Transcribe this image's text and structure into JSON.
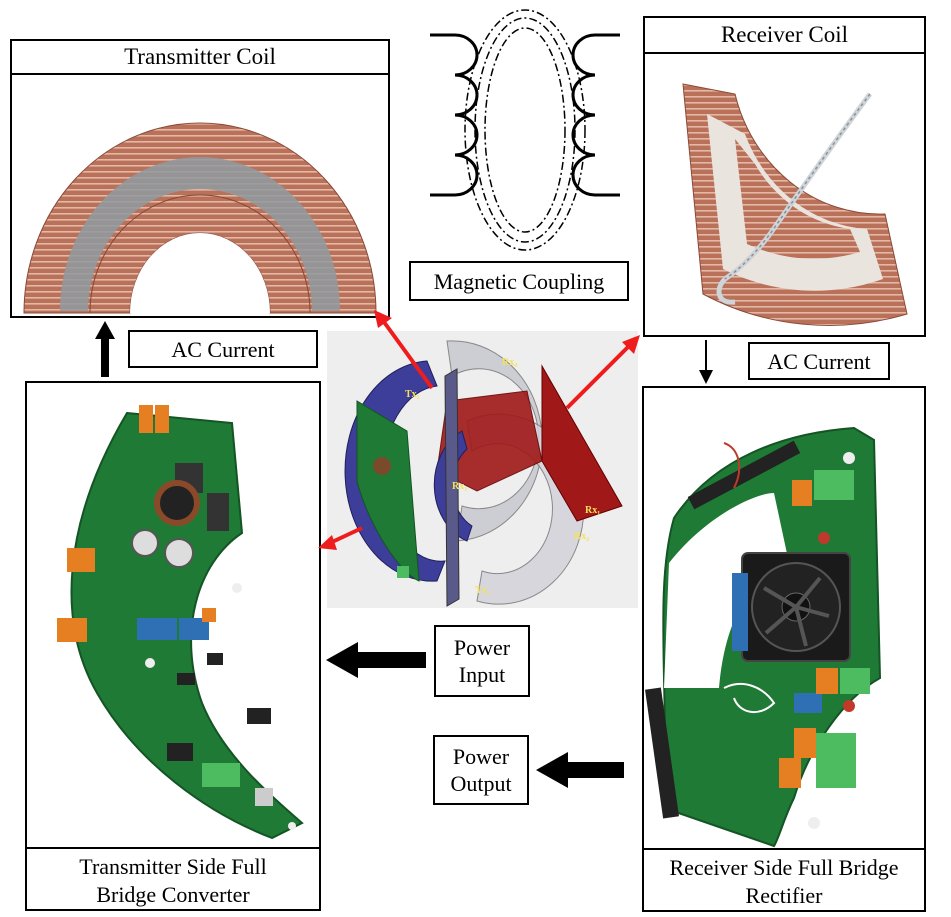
{
  "transmitter_coil": {
    "title": "Transmitter Coil"
  },
  "receiver_coil": {
    "title": "Receiver Coil"
  },
  "magnetic_coupling": {
    "label": "Magnetic Coupling"
  },
  "ac_current_left": {
    "label": "AC Current"
  },
  "ac_current_right": {
    "label": "AC Current"
  },
  "power_input": {
    "line1": "Power",
    "line2": "Input"
  },
  "power_output": {
    "line1": "Power",
    "line2": "Output"
  },
  "transmitter_board": {
    "line1": "Transmitter Side Full",
    "line2": "Bridge  Converter"
  },
  "receiver_board": {
    "line1": "Receiver Side Full Bridge",
    "line2": "Rectifier"
  },
  "assembly_labels": {
    "tx1": "Tx₁",
    "tx2": "Tx₂",
    "rx1": "Rx₁",
    "rx2": "Rx₂",
    "rx3": "Rx₃",
    "rx4": "Rx₄"
  },
  "colors": {
    "copper": "#b9715a",
    "pcb": "#1f7a35",
    "tx_coil_model": "#3d3d9a",
    "rx_coil_model": "#a01818",
    "arrow_red": "#ee1c1c"
  }
}
